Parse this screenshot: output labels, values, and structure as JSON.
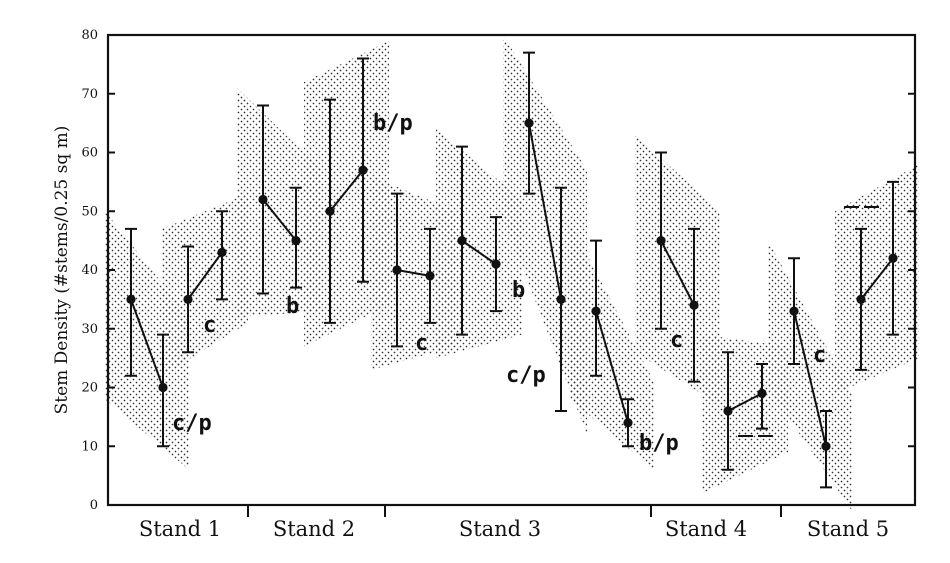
{
  "chart_data": {
    "type": "scatter",
    "ylabel": "Stem Density (#stems/0.25 sq m)",
    "ylim": [
      0,
      80
    ],
    "yticks": [
      0,
      10,
      20,
      30,
      40,
      50,
      60,
      70,
      80
    ],
    "groups": [
      "Stand 1",
      "Stand 2",
      "Stand 3",
      "Stand 4",
      "Stand 5"
    ],
    "pairs": [
      {
        "group": "Stand 1",
        "label": "c/p",
        "points": [
          {
            "mean": 35,
            "low": 22,
            "high": 47
          },
          {
            "mean": 20,
            "low": 10,
            "high": 29
          }
        ]
      },
      {
        "group": "Stand 1",
        "label": "c",
        "points": [
          {
            "mean": 35,
            "low": 26,
            "high": 44
          },
          {
            "mean": 43,
            "low": 35,
            "high": 50
          }
        ]
      },
      {
        "group": "Stand 2",
        "label": "b",
        "points": [
          {
            "mean": 52,
            "low": 36,
            "high": 68
          },
          {
            "mean": 45,
            "low": 37,
            "high": 54
          }
        ]
      },
      {
        "group": "Stand 2",
        "label": "b/p",
        "points": [
          {
            "mean": 50,
            "low": 31,
            "high": 69
          },
          {
            "mean": 57,
            "low": 38,
            "high": 76
          }
        ]
      },
      {
        "group": "Stand 3",
        "label": "c",
        "points": [
          {
            "mean": 40,
            "low": 27,
            "high": 53
          },
          {
            "mean": 39,
            "low": 31,
            "high": 47
          }
        ]
      },
      {
        "group": "Stand 3",
        "label": "b",
        "points": [
          {
            "mean": 45,
            "low": 29,
            "high": 61
          },
          {
            "mean": 41,
            "low": 33,
            "high": 49
          }
        ]
      },
      {
        "group": "Stand 3",
        "label": "c/p",
        "points": [
          {
            "mean": 65,
            "low": 53,
            "high": 77
          },
          {
            "mean": 35,
            "low": 16,
            "high": 54
          }
        ]
      },
      {
        "group": "Stand 3",
        "label": "b/p",
        "points": [
          {
            "mean": 33,
            "low": 22,
            "high": 45
          },
          {
            "mean": 14,
            "low": 10,
            "high": 18
          }
        ]
      },
      {
        "group": "Stand 4",
        "label": "c",
        "points": [
          {
            "mean": 45,
            "low": 30,
            "high": 60
          },
          {
            "mean": 34,
            "low": 21,
            "high": 47
          }
        ]
      },
      {
        "group": "Stand 4",
        "label": "",
        "points": [
          {
            "mean": 16,
            "low": 6,
            "high": 26
          },
          {
            "mean": 19,
            "low": 13,
            "high": 24
          }
        ]
      },
      {
        "group": "Stand 5",
        "label": "c",
        "points": [
          {
            "mean": 33,
            "low": 24,
            "high": 42
          },
          {
            "mean": 10,
            "low": 3,
            "high": 16
          }
        ]
      },
      {
        "group": "Stand 5",
        "label": "",
        "points": [
          {
            "mean": 35,
            "low": 23,
            "high": 47
          },
          {
            "mean": 42,
            "low": 29,
            "high": 55
          }
        ]
      }
    ],
    "grid": false,
    "legend": "none"
  }
}
